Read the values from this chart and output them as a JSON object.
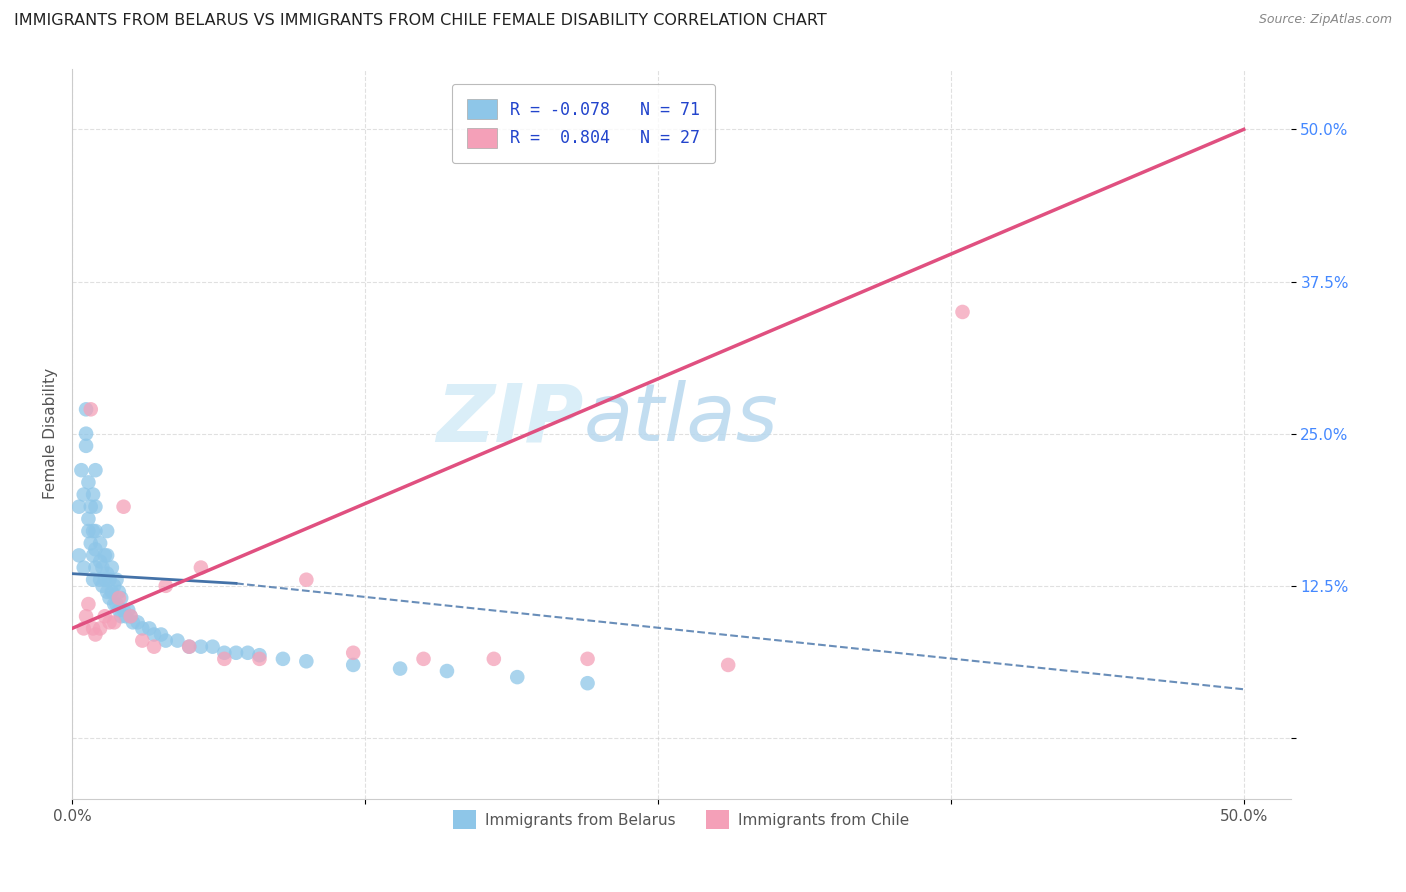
{
  "title": "IMMIGRANTS FROM BELARUS VS IMMIGRANTS FROM CHILE FEMALE DISABILITY CORRELATION CHART",
  "source": "Source: ZipAtlas.com",
  "ylabel": "Female Disability",
  "y_ticks": [
    0.0,
    0.125,
    0.25,
    0.375,
    0.5
  ],
  "y_tick_labels": [
    "",
    "12.5%",
    "25.0%",
    "37.5%",
    "50.0%"
  ],
  "x_ticks": [
    0.0,
    0.125,
    0.25,
    0.375,
    0.5
  ],
  "x_tick_labels": [
    "0.0%",
    "",
    "",
    "",
    "50.0%"
  ],
  "xlim": [
    0.0,
    0.52
  ],
  "ylim": [
    -0.05,
    0.55
  ],
  "R_belarus": -0.078,
  "N_belarus": 71,
  "R_chile": 0.804,
  "N_chile": 27,
  "color_belarus": "#8ec6e8",
  "color_chile": "#f4a0b8",
  "color_trendline_belarus": "#4472a8",
  "color_trendline_chile": "#e05080",
  "background_color": "#ffffff",
  "grid_color": "#cccccc",
  "legend_text_color": "#2244cc",
  "watermark_color": "#daeef8",
  "belarus_x": [
    0.003,
    0.003,
    0.004,
    0.005,
    0.005,
    0.006,
    0.006,
    0.006,
    0.007,
    0.007,
    0.007,
    0.008,
    0.008,
    0.009,
    0.009,
    0.009,
    0.009,
    0.01,
    0.01,
    0.01,
    0.01,
    0.01,
    0.012,
    0.012,
    0.012,
    0.013,
    0.013,
    0.014,
    0.014,
    0.015,
    0.015,
    0.015,
    0.015,
    0.016,
    0.016,
    0.017,
    0.017,
    0.018,
    0.018,
    0.019,
    0.019,
    0.02,
    0.02,
    0.021,
    0.021,
    0.022,
    0.023,
    0.024,
    0.025,
    0.026,
    0.028,
    0.03,
    0.033,
    0.035,
    0.038,
    0.04,
    0.045,
    0.05,
    0.055,
    0.06,
    0.065,
    0.07,
    0.075,
    0.08,
    0.09,
    0.1,
    0.12,
    0.14,
    0.16,
    0.19,
    0.22
  ],
  "belarus_y": [
    0.15,
    0.19,
    0.22,
    0.14,
    0.2,
    0.27,
    0.25,
    0.24,
    0.17,
    0.18,
    0.21,
    0.16,
    0.19,
    0.13,
    0.15,
    0.17,
    0.2,
    0.14,
    0.155,
    0.17,
    0.19,
    0.22,
    0.13,
    0.145,
    0.16,
    0.125,
    0.14,
    0.13,
    0.15,
    0.12,
    0.135,
    0.15,
    0.17,
    0.115,
    0.13,
    0.12,
    0.14,
    0.11,
    0.125,
    0.11,
    0.13,
    0.105,
    0.12,
    0.1,
    0.115,
    0.105,
    0.1,
    0.105,
    0.1,
    0.095,
    0.095,
    0.09,
    0.09,
    0.085,
    0.085,
    0.08,
    0.08,
    0.075,
    0.075,
    0.075,
    0.07,
    0.07,
    0.07,
    0.068,
    0.065,
    0.063,
    0.06,
    0.057,
    0.055,
    0.05,
    0.045
  ],
  "chile_x": [
    0.005,
    0.006,
    0.007,
    0.008,
    0.009,
    0.01,
    0.012,
    0.014,
    0.016,
    0.018,
    0.02,
    0.022,
    0.025,
    0.03,
    0.035,
    0.04,
    0.05,
    0.055,
    0.065,
    0.08,
    0.1,
    0.12,
    0.15,
    0.18,
    0.22,
    0.28,
    0.38
  ],
  "chile_y": [
    0.09,
    0.1,
    0.11,
    0.27,
    0.09,
    0.085,
    0.09,
    0.1,
    0.095,
    0.095,
    0.115,
    0.19,
    0.1,
    0.08,
    0.075,
    0.125,
    0.075,
    0.14,
    0.065,
    0.065,
    0.13,
    0.07,
    0.065,
    0.065,
    0.065,
    0.06,
    0.35
  ],
  "chile_trendline_x0": 0.0,
  "chile_trendline_y0": 0.09,
  "chile_trendline_x1": 0.5,
  "chile_trendline_y1": 0.5,
  "belarus_trendline_x0": 0.0,
  "belarus_trendline_y0": 0.135,
  "belarus_trendline_solid_x1": 0.07,
  "belarus_trendline_solid_y1": 0.127,
  "belarus_trendline_dash_x1": 0.5,
  "belarus_trendline_dash_y1": 0.04
}
